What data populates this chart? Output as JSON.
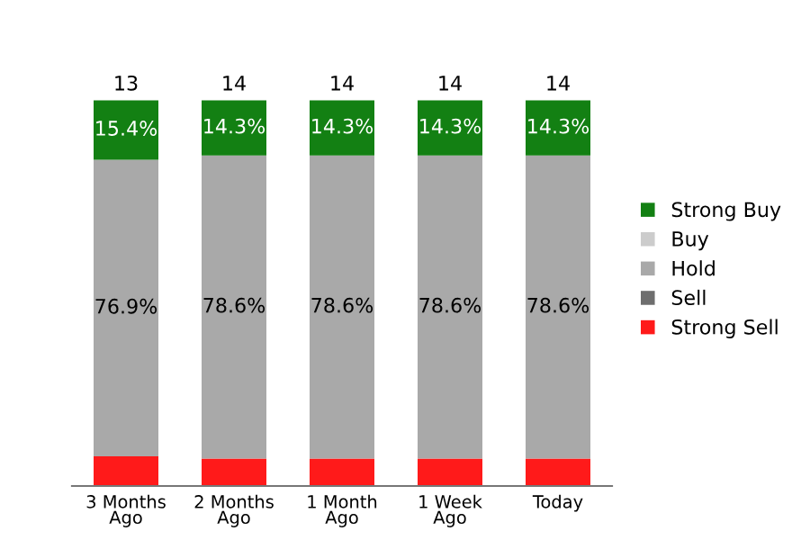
{
  "chart_data": {
    "type": "bar",
    "stacked": true,
    "categories": [
      "3 Months\nAgo",
      "2 Months\nAgo",
      "1 Month\nAgo",
      "1 Week\nAgo",
      "Today"
    ],
    "series": [
      {
        "name": "Strong Sell",
        "color": "#ff1a1a",
        "values": [
          7.7,
          7.1,
          7.1,
          7.1,
          7.1
        ],
        "value_labels": [
          null,
          null,
          null,
          null,
          null
        ]
      },
      {
        "name": "Sell",
        "color": "#6e6e6e",
        "values": [
          null,
          null,
          null,
          null,
          null
        ],
        "value_labels": [
          null,
          null,
          null,
          null,
          null
        ]
      },
      {
        "name": "Hold",
        "color": "#a9a9a9",
        "values": [
          76.9,
          78.6,
          78.6,
          78.6,
          78.6
        ],
        "value_labels": [
          "76.9%",
          "78.6%",
          "78.6%",
          "78.6%",
          "78.6%"
        ]
      },
      {
        "name": "Buy",
        "color": "#cccccc",
        "values": [
          null,
          null,
          null,
          null,
          null
        ],
        "value_labels": [
          null,
          null,
          null,
          null,
          null
        ]
      },
      {
        "name": "Strong Buy",
        "color": "#138013",
        "values": [
          15.4,
          14.3,
          14.3,
          14.3,
          14.3
        ],
        "value_labels": [
          "15.4%",
          "14.3%",
          "14.3%",
          "14.3%",
          "14.3%"
        ]
      }
    ],
    "annotations": [
      {
        "text": "13",
        "x": "3 Months\nAgo",
        "y": 100
      },
      {
        "text": "14",
        "x": "2 Months\nAgo",
        "y": 100
      },
      {
        "text": "14",
        "x": "1 Month\nAgo",
        "y": 100
      },
      {
        "text": "14",
        "x": "1 Week\nAgo",
        "y": 100
      },
      {
        "text": "14",
        "x": "Today",
        "y": 100
      }
    ],
    "legend": "right",
    "grid": false,
    "tick_labels": "x"
  }
}
